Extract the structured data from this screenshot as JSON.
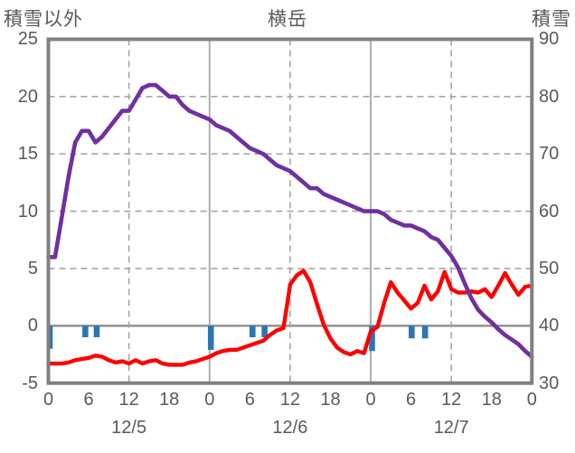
{
  "title": "横岳",
  "left_axis": {
    "label": "積雪以外",
    "min": -5,
    "max": 25,
    "ticks": [
      "25",
      "20",
      "15",
      "10",
      "5",
      "0",
      "-5"
    ],
    "tick_values": [
      25,
      20,
      15,
      10,
      5,
      0,
      -5
    ]
  },
  "right_axis": {
    "label": "積雪",
    "min": 30,
    "max": 90,
    "ticks": [
      "90",
      "80",
      "70",
      "60",
      "50",
      "40",
      "30"
    ],
    "tick_values": [
      90,
      80,
      70,
      60,
      50,
      40,
      30
    ]
  },
  "x_axis": {
    "hours_total": 72,
    "hour_tick_step": 6,
    "hour_ticks": [
      "0",
      "6",
      "12",
      "18",
      "0",
      "6",
      "12",
      "18",
      "0",
      "6",
      "12",
      "18",
      "0"
    ],
    "date_labels": [
      "12/5",
      "12/6",
      "12/7"
    ],
    "date_label_hours": [
      12,
      36,
      60
    ],
    "dashed_grid_hours": [
      12,
      36,
      60
    ],
    "solid_grid_hours": [
      24,
      48
    ]
  },
  "colors": {
    "snow_line": "#7030A0",
    "temp_line": "#FF0000",
    "bars": "#2E75B6",
    "grid": "#A6A6A6",
    "zero_line": "#8C8C8C",
    "border": "#808080",
    "text": "#595959",
    "background": "#FFFFFF"
  },
  "chart_data": {
    "type": "line",
    "x_unit": "hours from 12/5 00:00",
    "grid": "dashed horizontal every 5 left-units (10 right-units); dashed vertical at 12:00 each day; solid vertical at 00:00 each day; solid line at left 0 / right 40",
    "legend_position": "none",
    "series": [
      {
        "name": "積雪",
        "axis": "right",
        "color": "#7030A0",
        "axis_range": [
          30,
          90
        ],
        "values": [
          52,
          52,
          59,
          66,
          72,
          74,
          74,
          72,
          73,
          74.5,
          76,
          77.5,
          77.5,
          79.5,
          81.5,
          82,
          82,
          81,
          80,
          80,
          78.5,
          77.5,
          77,
          76.5,
          76,
          75,
          74.5,
          74,
          73,
          72,
          71,
          70.5,
          70,
          69,
          68,
          67.5,
          67,
          66,
          65,
          64,
          64,
          63,
          62.5,
          62,
          61.5,
          61,
          60.5,
          60,
          60,
          60,
          59.5,
          58.5,
          58,
          57.5,
          57.5,
          57,
          56.5,
          55.5,
          55,
          53.6,
          52.2,
          50.2,
          47.4,
          44.8,
          42.8,
          41.6,
          40.6,
          39.4,
          38.4,
          37.6,
          36.8,
          35.6,
          34.6
        ]
      },
      {
        "name": "積雪以外",
        "axis": "left",
        "color": "#FF0000",
        "axis_range": [
          -5,
          25
        ],
        "values": [
          -3.3,
          -3.3,
          -3.3,
          -3.2,
          -3.0,
          -2.9,
          -2.8,
          -2.6,
          -2.7,
          -3.0,
          -3.2,
          -3.1,
          -3.3,
          -3.0,
          -3.3,
          -3.1,
          -3.0,
          -3.3,
          -3.4,
          -3.4,
          -3.4,
          -3.2,
          -3.1,
          -2.9,
          -2.7,
          -2.4,
          -2.2,
          -2.1,
          -2.1,
          -1.9,
          -1.7,
          -1.5,
          -1.3,
          -0.8,
          -0.4,
          -0.2,
          3.6,
          4.4,
          4.8,
          3.8,
          1.9,
          0.1,
          -1.1,
          -1.9,
          -2.3,
          -2.5,
          -2.2,
          -2.4,
          -0.5,
          -0.1,
          2.0,
          3.8,
          2.9,
          2.2,
          1.5,
          2.0,
          3.5,
          2.3,
          3.0,
          4.7,
          3.2,
          2.9,
          2.9,
          3.0,
          2.9,
          3.2,
          2.5,
          3.5,
          4.6,
          3.6,
          2.7,
          3.4,
          3.5
        ]
      }
    ],
    "bars": {
      "axis": "left",
      "color": "#2E75B6",
      "baseline": 0,
      "points": [
        {
          "hour": 0.2,
          "value": -2.0
        },
        {
          "hour": 5.5,
          "value": -1.0
        },
        {
          "hour": 7.2,
          "value": -1.0
        },
        {
          "hour": 24.2,
          "value": -2.1
        },
        {
          "hour": 30.4,
          "value": -1.0
        },
        {
          "hour": 32.2,
          "value": -1.0
        },
        {
          "hour": 48.2,
          "value": -2.2
        },
        {
          "hour": 54.1,
          "value": -1.1
        },
        {
          "hour": 56.1,
          "value": -1.1
        }
      ]
    }
  }
}
